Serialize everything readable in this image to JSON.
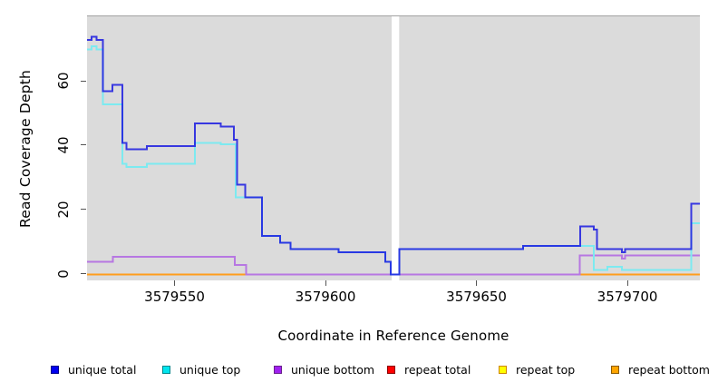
{
  "chart_data": {
    "type": "step",
    "xlabel": "Coordinate in Reference Genome",
    "ylabel": "Read Coverage Depth",
    "xlim": [
      3579521,
      3579724
    ],
    "ylim": [
      0,
      80
    ],
    "panel_bg": "#dbdbdb",
    "gap_band": {
      "from": 3579621.9,
      "to": 3579624.4,
      "color": "#ffffff"
    },
    "xticks": [
      {
        "label": "3579550",
        "coord": 3579550
      },
      {
        "label": "3579600",
        "coord": 3579600
      },
      {
        "label": "3579650",
        "coord": 3579650
      },
      {
        "label": "3579700",
        "coord": 3579700
      }
    ],
    "yticks": [
      {
        "label": "0",
        "value": 0
      },
      {
        "label": "20",
        "value": 20
      },
      {
        "label": "40",
        "value": 40
      },
      {
        "label": "60",
        "value": 60
      }
    ],
    "series": [
      {
        "name": "repeat top",
        "line_color": "#ffff33",
        "width": 1.3,
        "opacity": 1,
        "segments": [
          [
            [
              3579521,
              0
            ],
            [
              3579724,
              0
            ]
          ]
        ]
      },
      {
        "name": "repeat total",
        "line_color": "#d8486e",
        "width": 1.3,
        "opacity": 1,
        "segments": [
          [
            [
              3579521,
              0
            ],
            [
              3579724,
              0
            ]
          ]
        ]
      },
      {
        "name": "repeat bottom",
        "line_color": "#ff9d1c",
        "width": 2,
        "opacity": 1,
        "segments": [
          [
            [
              3579521,
              0
            ],
            [
              3579574,
              0
            ]
          ],
          [
            [
              3579684.2,
              0
            ],
            [
              3579724,
              0
            ]
          ]
        ]
      },
      {
        "name": "unique bottom",
        "line_color": "#b777e2",
        "width": 2,
        "opacity": 1,
        "segments": [
          [
            [
              3579521,
              4
            ],
            [
              3579529.6,
              5.5
            ],
            [
              3579569.9,
              3
            ],
            [
              3579573.7,
              0
            ],
            [
              3579684.2,
              6
            ],
            [
              3579698.1,
              5
            ],
            [
              3579699.2,
              6
            ],
            [
              3579724,
              6
            ]
          ]
        ]
      },
      {
        "name": "unique top",
        "line_color": "#7ceaf0",
        "width": 2,
        "opacity": 1,
        "segments": [
          [
            [
              3579521,
              70
            ],
            [
              3579522.5,
              71
            ],
            [
              3579524.2,
              70
            ],
            [
              3579526.3,
              53
            ],
            [
              3579532.7,
              34.5
            ],
            [
              3579534.1,
              33.5
            ],
            [
              3579540.8,
              34.5
            ],
            [
              3579556.8,
              41
            ],
            [
              3579565.3,
              40.5
            ],
            [
              3579570.3,
              24
            ],
            [
              3579578.9,
              12
            ],
            [
              3579584.9,
              10
            ],
            [
              3579588.4,
              8
            ],
            [
              3579604.3,
              7
            ],
            [
              3579619.8,
              4
            ],
            [
              3579621.6,
              0
            ],
            [
              3579624.4,
              8
            ],
            [
              3579665.4,
              9
            ],
            [
              3579688.9,
              1.5
            ],
            [
              3579693.4,
              2.5
            ],
            [
              3579698.1,
              1.5
            ],
            [
              3579721.2,
              16
            ],
            [
              3579724,
              16
            ]
          ]
        ]
      },
      {
        "name": "unique total",
        "line_color": "#1a1ae0",
        "width": 2,
        "opacity": 0.85,
        "segments": [
          [
            [
              3579521,
              73
            ],
            [
              3579522.5,
              74
            ],
            [
              3579524.2,
              73
            ],
            [
              3579526.3,
              57
            ],
            [
              3579529.4,
              59
            ],
            [
              3579532.7,
              41
            ],
            [
              3579534.1,
              39
            ],
            [
              3579540.8,
              40
            ],
            [
              3579556.8,
              47
            ],
            [
              3579565.3,
              46
            ],
            [
              3579569.7,
              42
            ],
            [
              3579570.7,
              28
            ],
            [
              3579573.4,
              24
            ],
            [
              3579578.9,
              12
            ],
            [
              3579584.9,
              10
            ],
            [
              3579588.4,
              8
            ],
            [
              3579604.3,
              7
            ],
            [
              3579619.8,
              4
            ],
            [
              3579621.6,
              0
            ],
            [
              3579624.4,
              8
            ],
            [
              3579665.4,
              9
            ],
            [
              3579684.4,
              15
            ],
            [
              3579688.9,
              14
            ],
            [
              3579689.9,
              8
            ],
            [
              3579698.1,
              7
            ],
            [
              3579699.2,
              8
            ],
            [
              3579721.2,
              22
            ],
            [
              3579724,
              22
            ]
          ]
        ]
      }
    ],
    "legend": [
      {
        "label": "unique total",
        "fill": "#0000f0",
        "border": "#00008b"
      },
      {
        "label": "unique top",
        "fill": "#00e5ee",
        "border": "#00868b"
      },
      {
        "label": "unique bottom",
        "fill": "#a020f0",
        "border": "#68228b"
      },
      {
        "label": "repeat total",
        "fill": "#ff0000",
        "border": "#8b0000"
      },
      {
        "label": "repeat top",
        "fill": "#ffff00",
        "border": "#cd8500"
      },
      {
        "label": "repeat bottom",
        "fill": "#ffa500",
        "border": "#8b5a00"
      }
    ]
  }
}
